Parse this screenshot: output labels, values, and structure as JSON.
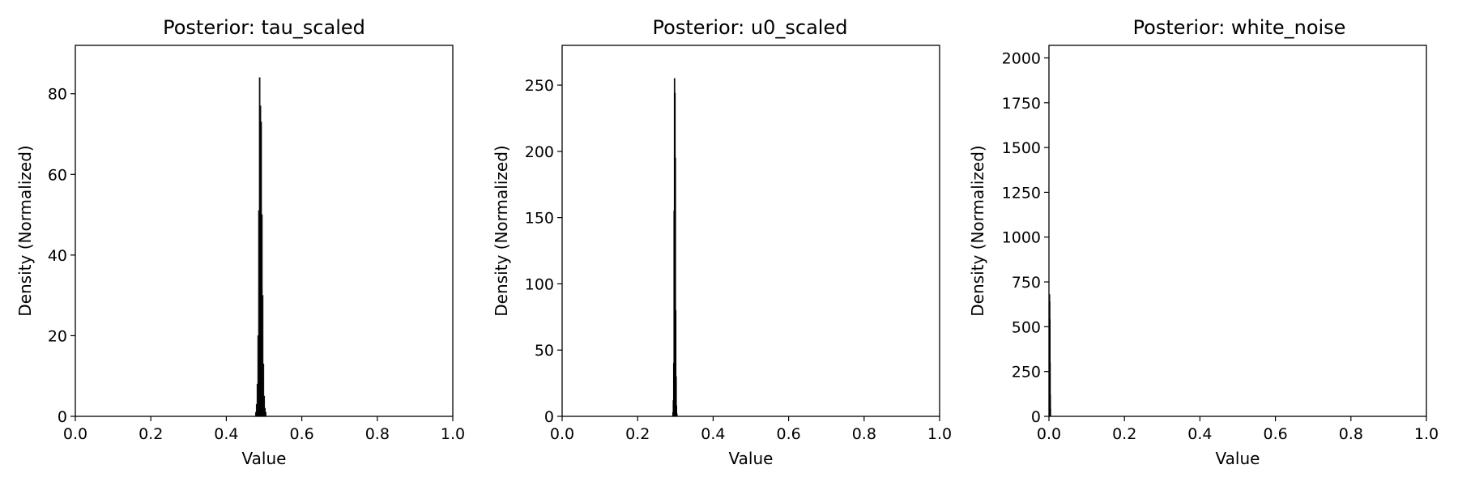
{
  "chart_data": [
    {
      "type": "bar",
      "title": "Posterior: tau_scaled",
      "xlabel": "Value",
      "ylabel": "Density (Normalized)",
      "xlim": [
        0.0,
        1.0
      ],
      "ylim": [
        0,
        92
      ],
      "xticks": [
        "0.0",
        "0.2",
        "0.4",
        "0.6",
        "0.8",
        "1.0"
      ],
      "yticks": [
        "0",
        "20",
        "40",
        "60",
        "80"
      ],
      "bar_color": "#000000",
      "x": [
        0.478,
        0.48,
        0.482,
        0.484,
        0.486,
        0.488,
        0.49,
        0.492,
        0.494,
        0.496,
        0.498,
        0.5,
        0.502,
        0.504
      ],
      "values": [
        1,
        3,
        8,
        20,
        51,
        84,
        77,
        73,
        50,
        30,
        13,
        5,
        2,
        1
      ]
    },
    {
      "type": "bar",
      "title": "Posterior: u0_scaled",
      "xlabel": "Value",
      "ylabel": "Density (Normalized)",
      "xlim": [
        0.0,
        1.0
      ],
      "ylim": [
        0,
        280
      ],
      "xticks": [
        "0.0",
        "0.2",
        "0.4",
        "0.6",
        "0.8",
        "1.0"
      ],
      "yticks": [
        "0",
        "50",
        "100",
        "150",
        "200",
        "250"
      ],
      "bar_color": "#000000",
      "x": [
        0.293,
        0.294,
        0.295,
        0.296,
        0.297,
        0.298,
        0.299,
        0.3,
        0.301,
        0.302,
        0.303
      ],
      "values": [
        3,
        12,
        40,
        155,
        255,
        244,
        195,
        80,
        30,
        8,
        2
      ]
    },
    {
      "type": "bar",
      "title": "Posterior: white_noise",
      "xlabel": "Value",
      "ylabel": "Density (Normalized)",
      "xlim": [
        0.0,
        1.0
      ],
      "ylim": [
        0,
        2070
      ],
      "xticks": [
        "0.0",
        "0.2",
        "0.4",
        "0.6",
        "0.8",
        "1.0"
      ],
      "yticks": [
        "0",
        "250",
        "500",
        "750",
        "1000",
        "1250",
        "1500",
        "1750",
        "2000"
      ],
      "bar_color": "#000000",
      "x": [
        0.0003,
        0.0008,
        0.0013,
        0.0018,
        0.0023,
        0.0028
      ],
      "values": [
        680,
        640,
        540,
        300,
        120,
        40
      ]
    }
  ]
}
